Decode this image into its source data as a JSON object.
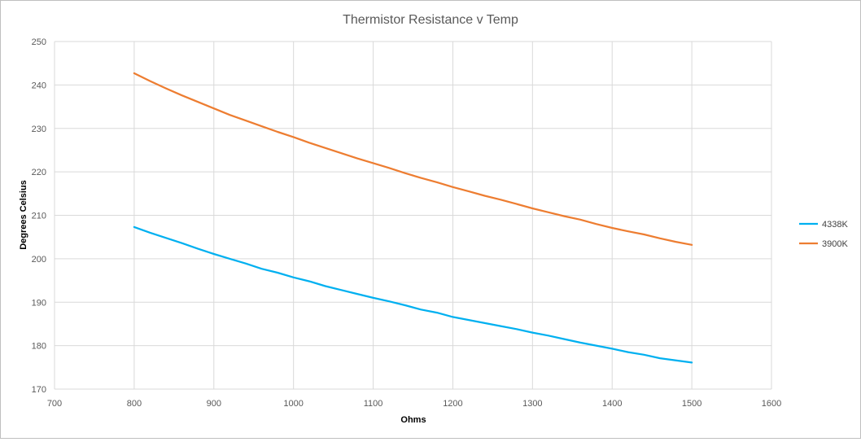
{
  "chart_data": {
    "type": "line",
    "title": "Thermistor Resistance v Temp",
    "xlabel": "Ohms",
    "ylabel": "Degrees Celsius",
    "xlim": [
      700,
      1600
    ],
    "ylim": [
      170,
      250
    ],
    "xticks": [
      700,
      800,
      900,
      1000,
      1100,
      1200,
      1300,
      1400,
      1500,
      1600
    ],
    "yticks": [
      170,
      180,
      190,
      200,
      210,
      220,
      230,
      240,
      250
    ],
    "grid": true,
    "legend_position": "right",
    "x": [
      800,
      820,
      840,
      860,
      880,
      900,
      920,
      940,
      960,
      980,
      1000,
      1020,
      1040,
      1060,
      1080,
      1100,
      1120,
      1140,
      1160,
      1180,
      1200,
      1220,
      1240,
      1260,
      1280,
      1300,
      1320,
      1340,
      1360,
      1380,
      1400,
      1420,
      1440,
      1460,
      1480,
      1500
    ],
    "series": [
      {
        "name": "4338K",
        "color": "#00b0f0",
        "values": [
          207.3,
          206.0,
          204.8,
          203.6,
          202.3,
          201.1,
          200.0,
          198.9,
          197.7,
          196.8,
          195.7,
          194.8,
          193.7,
          192.8,
          191.9,
          191.0,
          190.2,
          189.3,
          188.3,
          187.6,
          186.6,
          185.9,
          185.2,
          184.5,
          183.8,
          183.0,
          182.3,
          181.5,
          180.7,
          180.0,
          179.3,
          178.5,
          177.9,
          177.1,
          176.6,
          176.1
        ]
      },
      {
        "name": "3900K",
        "color": "#ed7d31",
        "values": [
          242.7,
          240.9,
          239.2,
          237.6,
          236.1,
          234.6,
          233.1,
          231.8,
          230.5,
          229.2,
          228.0,
          226.7,
          225.5,
          224.3,
          223.1,
          222.0,
          220.9,
          219.7,
          218.6,
          217.6,
          216.5,
          215.5,
          214.5,
          213.6,
          212.6,
          211.6,
          210.7,
          209.8,
          209.0,
          208.0,
          207.1,
          206.3,
          205.6,
          204.7,
          203.9,
          203.2
        ]
      }
    ]
  }
}
